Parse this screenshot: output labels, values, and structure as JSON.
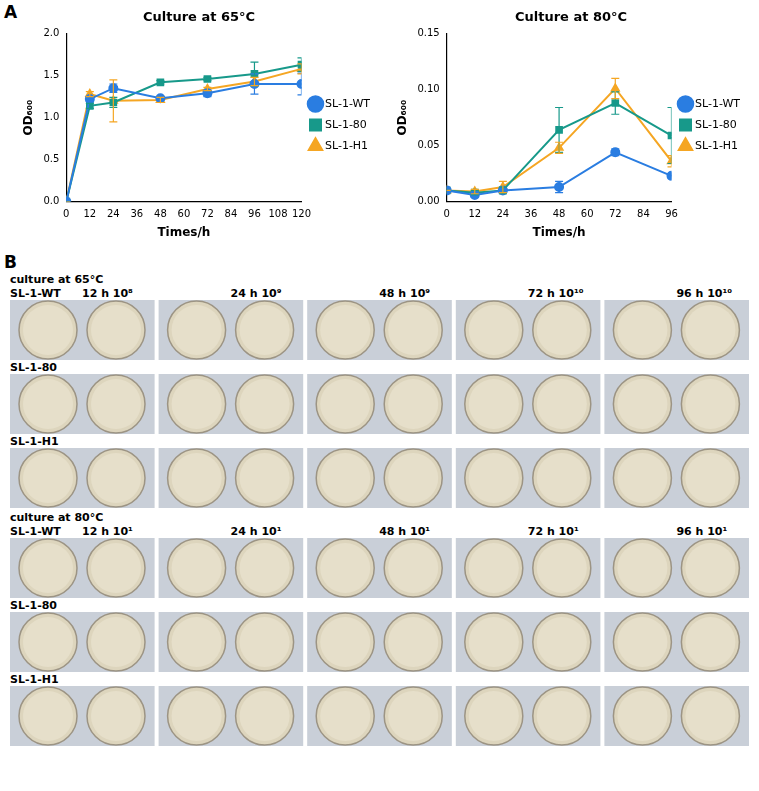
{
  "chart_data": [
    {
      "type": "line",
      "title": "Culture at 65°C",
      "x_label": "Times/h",
      "y_label": "OD₆₀₀",
      "x": [
        0,
        12,
        24,
        48,
        72,
        96,
        120
      ],
      "series": [
        {
          "name": "SL-1-WT",
          "color": "#2a7de1",
          "marker": "circle",
          "values": [
            0,
            1.22,
            1.35,
            1.23,
            1.29,
            1.4,
            1.4
          ],
          "errors": [
            0,
            0.03,
            0.05,
            0.02,
            0.04,
            0.12,
            0.13
          ]
        },
        {
          "name": "SL-1-80",
          "color": "#17998a",
          "marker": "square",
          "values": [
            0,
            1.14,
            1.18,
            1.42,
            1.46,
            1.52,
            1.63
          ],
          "errors": [
            0,
            0.03,
            0.06,
            0.02,
            0.02,
            0.14,
            0.08
          ]
        },
        {
          "name": "SL-1-H1",
          "color": "#f5a623",
          "marker": "triangle",
          "values": [
            0,
            1.28,
            1.2,
            1.21,
            1.34,
            1.43,
            1.58
          ],
          "errors": [
            0,
            0.03,
            0.25,
            0.03,
            0.02,
            0.05,
            0.06
          ]
        }
      ],
      "xlim": [
        0,
        120
      ],
      "xticks": [
        0,
        12,
        24,
        36,
        48,
        60,
        72,
        84,
        96,
        108,
        120
      ],
      "ylim": [
        0,
        2
      ],
      "yticks": [
        {
          "value": 0,
          "label": "0.0"
        },
        0.5,
        {
          "value": 1,
          "label": "1.0"
        },
        1.5,
        {
          "value": 2,
          "label": "2.0"
        }
      ],
      "grid": false,
      "legend": "right"
    },
    {
      "type": "line",
      "title": "Culture at 80°C",
      "x_label": "Times/h",
      "y_label": "OD₆₀₀",
      "x": [
        0,
        12,
        24,
        48,
        72,
        96
      ],
      "series": [
        {
          "name": "SL-1-WT",
          "color": "#2a7de1",
          "marker": "circle",
          "values": [
            0.01,
            0.006,
            0.01,
            0.013,
            0.044,
            0.023
          ],
          "errors": [
            0,
            0.002,
            0.002,
            0.005,
            0.003,
            0.002
          ]
        },
        {
          "name": "SL-1-80",
          "color": "#17998a",
          "marker": "square",
          "values": [
            0.01,
            0.008,
            0.01,
            0.064,
            0.088,
            0.059
          ],
          "errors": [
            0,
            0.002,
            0.003,
            0.02,
            0.01,
            0.025
          ]
        },
        {
          "name": "SL-1-H1",
          "color": "#f5a623",
          "marker": "triangle",
          "values": [
            0.01,
            0.009,
            0.013,
            0.048,
            0.101,
            0.036
          ],
          "errors": [
            0,
            0.002,
            0.005,
            0.005,
            0.009,
            0.005
          ]
        }
      ],
      "xlim": [
        0,
        96
      ],
      "xticks": [
        0,
        12,
        24,
        36,
        48,
        60,
        72,
        84,
        96
      ],
      "ylim": [
        0,
        0.15
      ],
      "yticks": [
        {
          "value": 0,
          "label": "0.00"
        },
        0.05,
        {
          "value": 0.1,
          "label": "0.10"
        },
        0.15
      ],
      "grid": false,
      "legend": "right"
    }
  ],
  "panel_labels": [
    "A",
    "B"
  ],
  "plates": {
    "groups": [
      {
        "title": "culture at 65°C",
        "times": [
          "12 h 10⁸",
          "24 h 10⁹",
          "48 h 10⁹",
          "72 h 10¹⁰",
          "96 h 10¹⁰"
        ],
        "strains": [
          "SL-1-WT",
          "SL-1-80",
          "SL-1-H1"
        ]
      },
      {
        "title": "culture at 80°C",
        "times": [
          "12 h 10¹",
          "24 h 10¹",
          "48 h 10¹",
          "72 h 10¹",
          "96 h 10¹"
        ],
        "strains": [
          "SL-1-WT",
          "SL-1-80",
          "SL-1-H1"
        ]
      }
    ]
  }
}
